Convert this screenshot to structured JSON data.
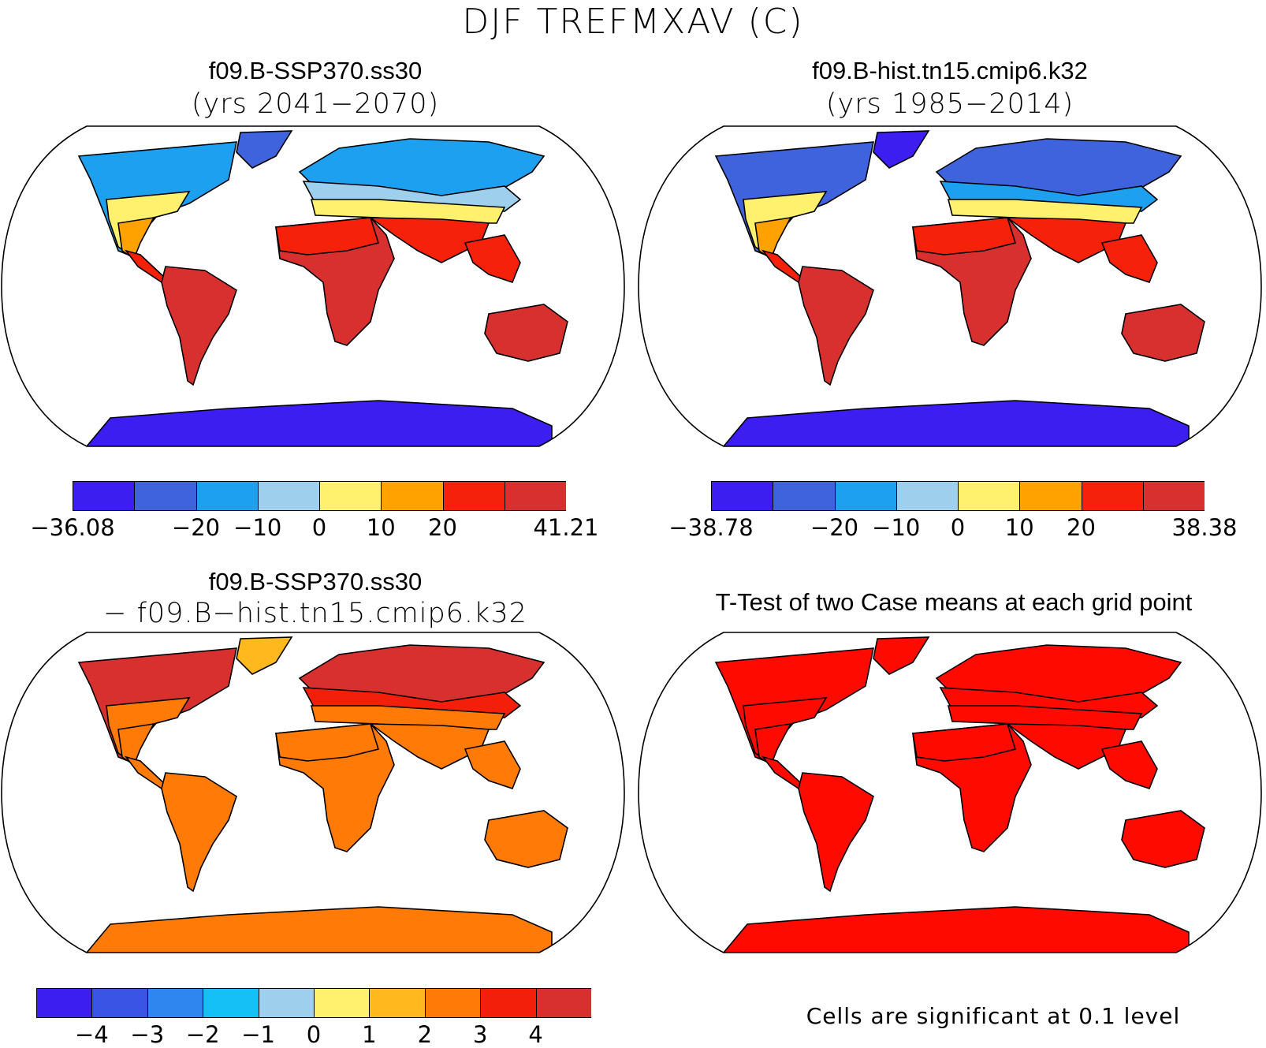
{
  "title": "DJF TREFMXAV (C)",
  "panels": {
    "top_left": {
      "title": "f09.B-SSP370.ss30",
      "subtitle": "(yrs 2041−2070)"
    },
    "top_right": {
      "title": "f09.B-hist.tn15.cmip6.k32",
      "subtitle": "(yrs 1985−2014)"
    },
    "bottom_left": {
      "title": "f09.B-SSP370.ss30",
      "subtitle": "− f09.B−hist.tn15.cmip6.k32"
    },
    "bottom_right": {
      "title": "T-Test of two Case means at each grid point",
      "note": "Cells are significant at 0.1 level"
    }
  },
  "colorbars": {
    "top_left": {
      "colors": [
        "#3d1ef0",
        "#3f63dd",
        "#1ea0f0",
        "#9ed0ee",
        "#fff06e",
        "#ffa200",
        "#f5210a",
        "#d8302f"
      ],
      "labels": [
        "−36.08",
        "",
        "−20",
        "−10",
        "0",
        "10",
        "20",
        "",
        "41.21"
      ]
    },
    "top_right": {
      "colors": [
        "#3d1ef0",
        "#3f63dd",
        "#1ea0f0",
        "#9ed0ee",
        "#fff06e",
        "#ffa200",
        "#f5210a",
        "#d8302f"
      ],
      "labels": [
        "−38.78",
        "",
        "−20",
        "−10",
        "0",
        "10",
        "20",
        "",
        "38.38"
      ]
    },
    "bottom_left": {
      "colors": [
        "#3d1ef0",
        "#3a55e6",
        "#2f86ee",
        "#14c0f5",
        "#9ed0ee",
        "#fff06e",
        "#ffb81e",
        "#ff7a06",
        "#f41f0b",
        "#d8302f"
      ],
      "labels": [
        "",
        "−4",
        "−3",
        "−2",
        "−1",
        "0",
        "1",
        "2",
        "3",
        "4",
        ""
      ]
    }
  },
  "map_fills": {
    "top_left": {
      "north": "#1ea0f0",
      "north2": "#9ed0ee",
      "mid": "#fff06e",
      "warm": "#ffa200",
      "hot": "#f5210a",
      "tropics": "#d8302f",
      "antarctica": "#3d1ef0",
      "greenland": "#3f63dd"
    },
    "top_right": {
      "north": "#3f63dd",
      "north2": "#1ea0f0",
      "mid": "#fff06e",
      "warm": "#ffa200",
      "hot": "#f5210a",
      "tropics": "#d8302f",
      "antarctica": "#3d1ef0",
      "greenland": "#3d1ef0"
    },
    "bottom_left": {
      "north": "#d8302f",
      "north2": "#f41f0b",
      "mid": "#ff7a06",
      "warm": "#ff7a06",
      "hot": "#ff7a06",
      "tropics": "#ff7a06",
      "antarctica": "#ff7a06",
      "greenland": "#ffb81e"
    },
    "bottom_right": {
      "north": "#ff0a00",
      "north2": "#ff0a00",
      "mid": "#ff0a00",
      "warm": "#ff0a00",
      "hot": "#ff0a00",
      "tropics": "#ff0a00",
      "antarctica": "#ff0a00",
      "greenland": "#ff0a00"
    }
  }
}
